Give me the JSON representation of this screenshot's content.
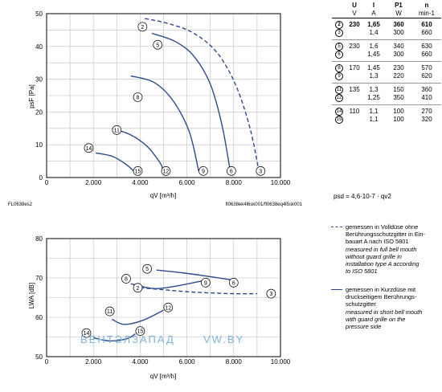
{
  "table": {
    "headers": [
      "U",
      "I",
      "P1",
      "n"
    ],
    "units": [
      "V",
      "A",
      "W",
      "min-1"
    ],
    "groups": [
      [
        {
          "curve": "2",
          "U": "230",
          "I": "1,65",
          "P": "360",
          "n": "610",
          "bold": true
        },
        {
          "curve": "3",
          "U": "",
          "I": "1,4",
          "P": "300",
          "n": "660",
          "bold": false
        }
      ],
      [
        {
          "curve": "5",
          "U": "230",
          "I": "1,6",
          "P": "340",
          "n": "630",
          "bold": false
        },
        {
          "curve": "6",
          "U": "",
          "I": "1,45",
          "P": "300",
          "n": "660",
          "bold": false
        }
      ],
      [
        {
          "curve": "8",
          "U": "170",
          "I": "1,45",
          "P": "230",
          "n": "570",
          "bold": false
        },
        {
          "curve": "9",
          "U": "",
          "I": "1,3",
          "P": "220",
          "n": "620",
          "bold": false
        }
      ],
      [
        {
          "curve": "11",
          "U": "135",
          "I": "1,3",
          "P": "150",
          "n": "360",
          "bold": false
        },
        {
          "curve": "12",
          "U": "",
          "I": "1,25",
          "P": "350",
          "n": "410",
          "bold": false
        }
      ],
      [
        {
          "curve": "14",
          "U": "110",
          "I": "1,1",
          "P": "100",
          "n": "270",
          "bold": false
        },
        {
          "curve": "15",
          "U": "",
          "I": "1,1",
          "P": "100",
          "n": "320",
          "bold": false
        }
      ]
    ]
  },
  "formula": "psd = 4,6·10-7 · qv2",
  "legend": [
    {
      "style": "dashed",
      "lines": [
        {
          "text": "gemessen in Volldüse ohne",
          "italic": false
        },
        {
          "text": "Berührungsschutzgitter in Ein-",
          "italic": false
        },
        {
          "text": "bauart A nach ISO 5801",
          "italic": false
        },
        {
          "text": "measured in full bell mouth",
          "italic": true
        },
        {
          "text": "without guard grille in",
          "italic": true
        },
        {
          "text": "installation type A according",
          "italic": true
        },
        {
          "text": "to ISO 5801",
          "italic": true
        }
      ]
    },
    {
      "style": "solid",
      "lines": [
        {
          "text": "gemessen in Kurzdüse mit",
          "italic": false
        },
        {
          "text": "druckseitigem Berührungs-",
          "italic": false
        },
        {
          "text": "schutzgitter",
          "italic": false
        },
        {
          "text": "measured in short bell mouth",
          "italic": true
        },
        {
          "text": "with guard grille on the",
          "italic": true
        },
        {
          "text": "pressure side",
          "italic": true
        }
      ]
    }
  ],
  "codes": {
    "top_left": "FL0638es2",
    "top_right": "fl0638ek4l6sk001/fl0638eq4l5sk001"
  },
  "watermark": {
    "left": "ВЕНТЭЛЗАПАД",
    "right": "VW.BY"
  },
  "chart_data": [
    {
      "type": "line",
      "xlabel": "qV [m³/h]",
      "ylabel": "psF [Pa]",
      "xlim": [
        0,
        10000
      ],
      "ylim": [
        0,
        50
      ],
      "xticks": [
        0,
        2000,
        4000,
        6000,
        8000,
        10000
      ],
      "xtick_labels": [
        "0",
        "2.000",
        "4.000",
        "6.000",
        "8.000",
        "10.000"
      ],
      "yticks": [
        0,
        10,
        20,
        30,
        40,
        50
      ],
      "grid": true,
      "series": [
        {
          "name": "2",
          "dash": true,
          "x": [
            4200,
            5200,
            6300,
            7300,
            8100,
            8700,
            9050
          ],
          "y": [
            48.5,
            47,
            44,
            38,
            28,
            15,
            3
          ],
          "label": [
            4100,
            46
          ]
        },
        {
          "name": "3",
          "dash": false,
          "x": [
            9050
          ],
          "y": [
            3
          ],
          "label": [
            9150,
            2
          ]
        },
        {
          "name": "5",
          "dash": false,
          "x": [
            4500,
            5500,
            6300,
            7000,
            7500,
            7850
          ],
          "y": [
            44,
            41.5,
            37,
            28.5,
            16,
            2
          ],
          "label": [
            4750,
            40.5
          ]
        },
        {
          "name": "6",
          "dash": false,
          "x": [
            7850
          ],
          "y": [
            2
          ],
          "label": [
            7900,
            2
          ]
        },
        {
          "name": "8",
          "dash": false,
          "x": [
            3600,
            4600,
            5400,
            6100,
            6500
          ],
          "y": [
            31,
            29,
            23.5,
            14,
            2
          ],
          "label": [
            3900,
            24.5
          ]
        },
        {
          "name": "9",
          "dash": false,
          "x": [
            6500
          ],
          "y": [
            2
          ],
          "label": [
            6700,
            2
          ]
        },
        {
          "name": "11",
          "dash": false,
          "x": [
            2800,
            3600,
            4300,
            4850,
            5000
          ],
          "y": [
            15,
            13,
            9.5,
            4.5,
            2
          ],
          "label": [
            3000,
            14.5
          ]
        },
        {
          "name": "12",
          "dash": false,
          "x": [
            5000
          ],
          "y": [
            2
          ],
          "label": [
            5100,
            2
          ]
        },
        {
          "name": "14",
          "dash": false,
          "x": [
            2100,
            2800,
            3300,
            3650,
            3750
          ],
          "y": [
            7.5,
            6.5,
            4.5,
            2.5,
            1.5
          ],
          "label": [
            1800,
            9
          ]
        },
        {
          "name": "15",
          "dash": false,
          "x": [
            3750
          ],
          "y": [
            1.5
          ],
          "label": [
            3900,
            2
          ]
        }
      ]
    },
    {
      "type": "line",
      "xlabel": "qV [m³/h]",
      "ylabel": "LWA [dB]",
      "xlim": [
        0,
        10000
      ],
      "ylim": [
        50,
        80
      ],
      "xticks": [
        0,
        2000,
        4000,
        6000,
        8000,
        10000
      ],
      "xtick_labels": [
        "0",
        "2.000",
        "4.000",
        "6.000",
        "8.000",
        "10.000"
      ],
      "yticks": [
        50,
        60,
        70,
        80
      ],
      "grid": true,
      "series": [
        {
          "name": "2",
          "dash": true,
          "x": [
            4000,
            5000,
            6000,
            7000,
            8000,
            9000
          ],
          "y": [
            67.5,
            67,
            66.5,
            66.2,
            66,
            66
          ],
          "label": [
            3900,
            67.5
          ]
        },
        {
          "name": "3",
          "dash": false,
          "x": [
            9000
          ],
          "y": [
            66
          ],
          "label": [
            9600,
            66
          ]
        },
        {
          "name": "5",
          "dash": false,
          "x": [
            4700,
            5800,
            6800,
            7900
          ],
          "y": [
            72,
            71.3,
            70.5,
            69.5
          ],
          "label": [
            4300,
            72.3
          ]
        },
        {
          "name": "6",
          "dash": false,
          "x": [
            7900
          ],
          "y": [
            69.5
          ],
          "label": [
            8000,
            68.8
          ]
        },
        {
          "name": "8",
          "dash": false,
          "x": [
            3600,
            4600,
            5600,
            6700
          ],
          "y": [
            68.5,
            67.3,
            68,
            69.3
          ],
          "label": [
            3400,
            69.8
          ]
        },
        {
          "name": "9",
          "dash": false,
          "x": [
            6700
          ],
          "y": [
            69.3
          ],
          "label": [
            6800,
            68.8
          ]
        },
        {
          "name": "11",
          "dash": false,
          "x": [
            2800,
            3300,
            4100,
            5000
          ],
          "y": [
            59.5,
            58.2,
            59.2,
            61.8
          ],
          "label": [
            2700,
            61.5
          ]
        },
        {
          "name": "12",
          "dash": false,
          "x": [
            5000
          ],
          "y": [
            61.8
          ],
          "label": [
            5200,
            62.5
          ]
        },
        {
          "name": "14",
          "dash": false,
          "x": [
            2000,
            2700,
            3400,
            3800
          ],
          "y": [
            54.8,
            54,
            54.5,
            55.8
          ],
          "label": [
            1700,
            56
          ]
        },
        {
          "name": "15",
          "dash": false,
          "x": [
            3800
          ],
          "y": [
            55.8
          ],
          "label": [
            4000,
            56.5
          ]
        }
      ]
    }
  ]
}
